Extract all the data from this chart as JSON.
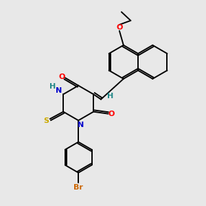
{
  "background_color": "#e8e8e8",
  "atom_colors": {
    "O": "#ff0000",
    "N": "#0000cc",
    "S": "#ccaa00",
    "Br": "#cc6600",
    "H": "#228888",
    "C": "#000000"
  },
  "bond_color": "#000000",
  "lw": 1.4,
  "fig_width": 3.0,
  "fig_height": 3.0,
  "dpi": 100,
  "xlim": [
    0,
    10
  ],
  "ylim": [
    0,
    10
  ]
}
